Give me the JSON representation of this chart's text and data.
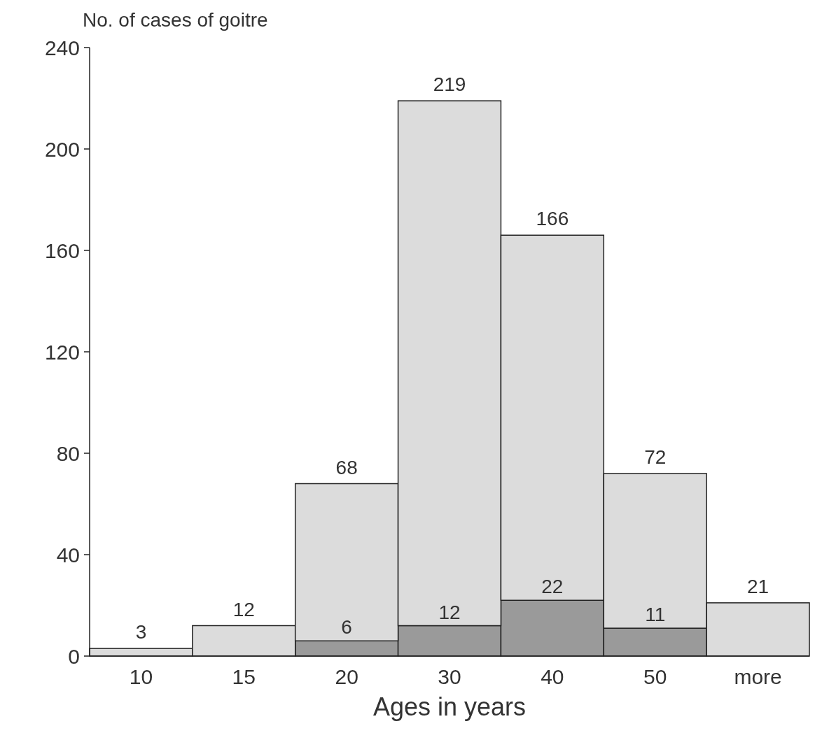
{
  "chart_data": {
    "type": "bar",
    "stacked": true,
    "ylabel": "No. of cases of goitre",
    "xlabel": "Ages in years",
    "categories": [
      "10",
      "15",
      "20",
      "30",
      "40",
      "50",
      "more"
    ],
    "series": [
      {
        "color": "#9a9a9a",
        "values": [
          0,
          0,
          6,
          12,
          22,
          11,
          0
        ],
        "value_labels": [
          null,
          null,
          "6",
          "12",
          "22",
          "11",
          null
        ]
      },
      {
        "color": "#dcdcdc",
        "values": [
          3,
          12,
          62,
          207,
          144,
          61,
          21
        ]
      }
    ],
    "totals": [
      "3",
      "12",
      "68",
      "219",
      "166",
      "72",
      "21"
    ],
    "ylim": [
      0,
      240
    ],
    "yticks": [
      0,
      40,
      80,
      120,
      160,
      200,
      240
    ],
    "grid": false
  }
}
